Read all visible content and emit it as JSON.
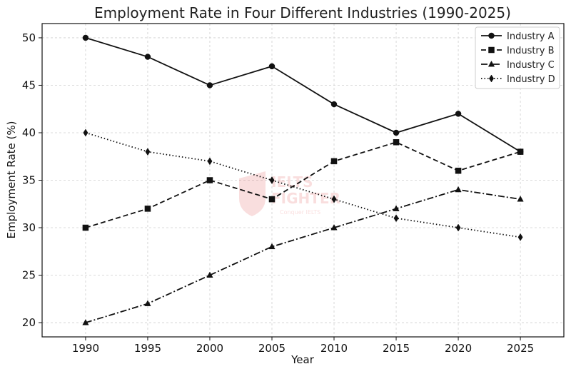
{
  "chart_data": {
    "type": "line",
    "title": "Employment Rate in Four Different Industries (1990-2025)",
    "xlabel": "Year",
    "ylabel": "Employment Rate (%)",
    "x": [
      1990,
      1995,
      2000,
      2005,
      2010,
      2015,
      2020,
      2025
    ],
    "xlim": [
      1986.5,
      2028.5
    ],
    "ylim": [
      18.5,
      51.5
    ],
    "yticks": [
      20,
      25,
      30,
      35,
      40,
      45,
      50
    ],
    "grid": true,
    "legend_position": "top-right",
    "series": [
      {
        "name": "Industry A",
        "values": [
          50,
          48,
          45,
          47,
          43,
          40,
          42,
          38
        ],
        "marker": "circle",
        "dash": "solid"
      },
      {
        "name": "Industry B",
        "values": [
          30,
          32,
          35,
          33,
          37,
          39,
          36,
          38
        ],
        "marker": "square",
        "dash": "dashed"
      },
      {
        "name": "Industry C",
        "values": [
          20,
          22,
          25,
          28,
          30,
          32,
          34,
          33
        ],
        "marker": "triangle",
        "dash": "dashdot"
      },
      {
        "name": "Industry D",
        "values": [
          40,
          38,
          37,
          35,
          33,
          31,
          30,
          29
        ],
        "marker": "diamond",
        "dash": "dotted"
      }
    ]
  },
  "watermark": {
    "line1": "IELTS",
    "line2": "FIGHTER",
    "line3": "Conquer IELTS",
    "color": "#e03a3a"
  }
}
